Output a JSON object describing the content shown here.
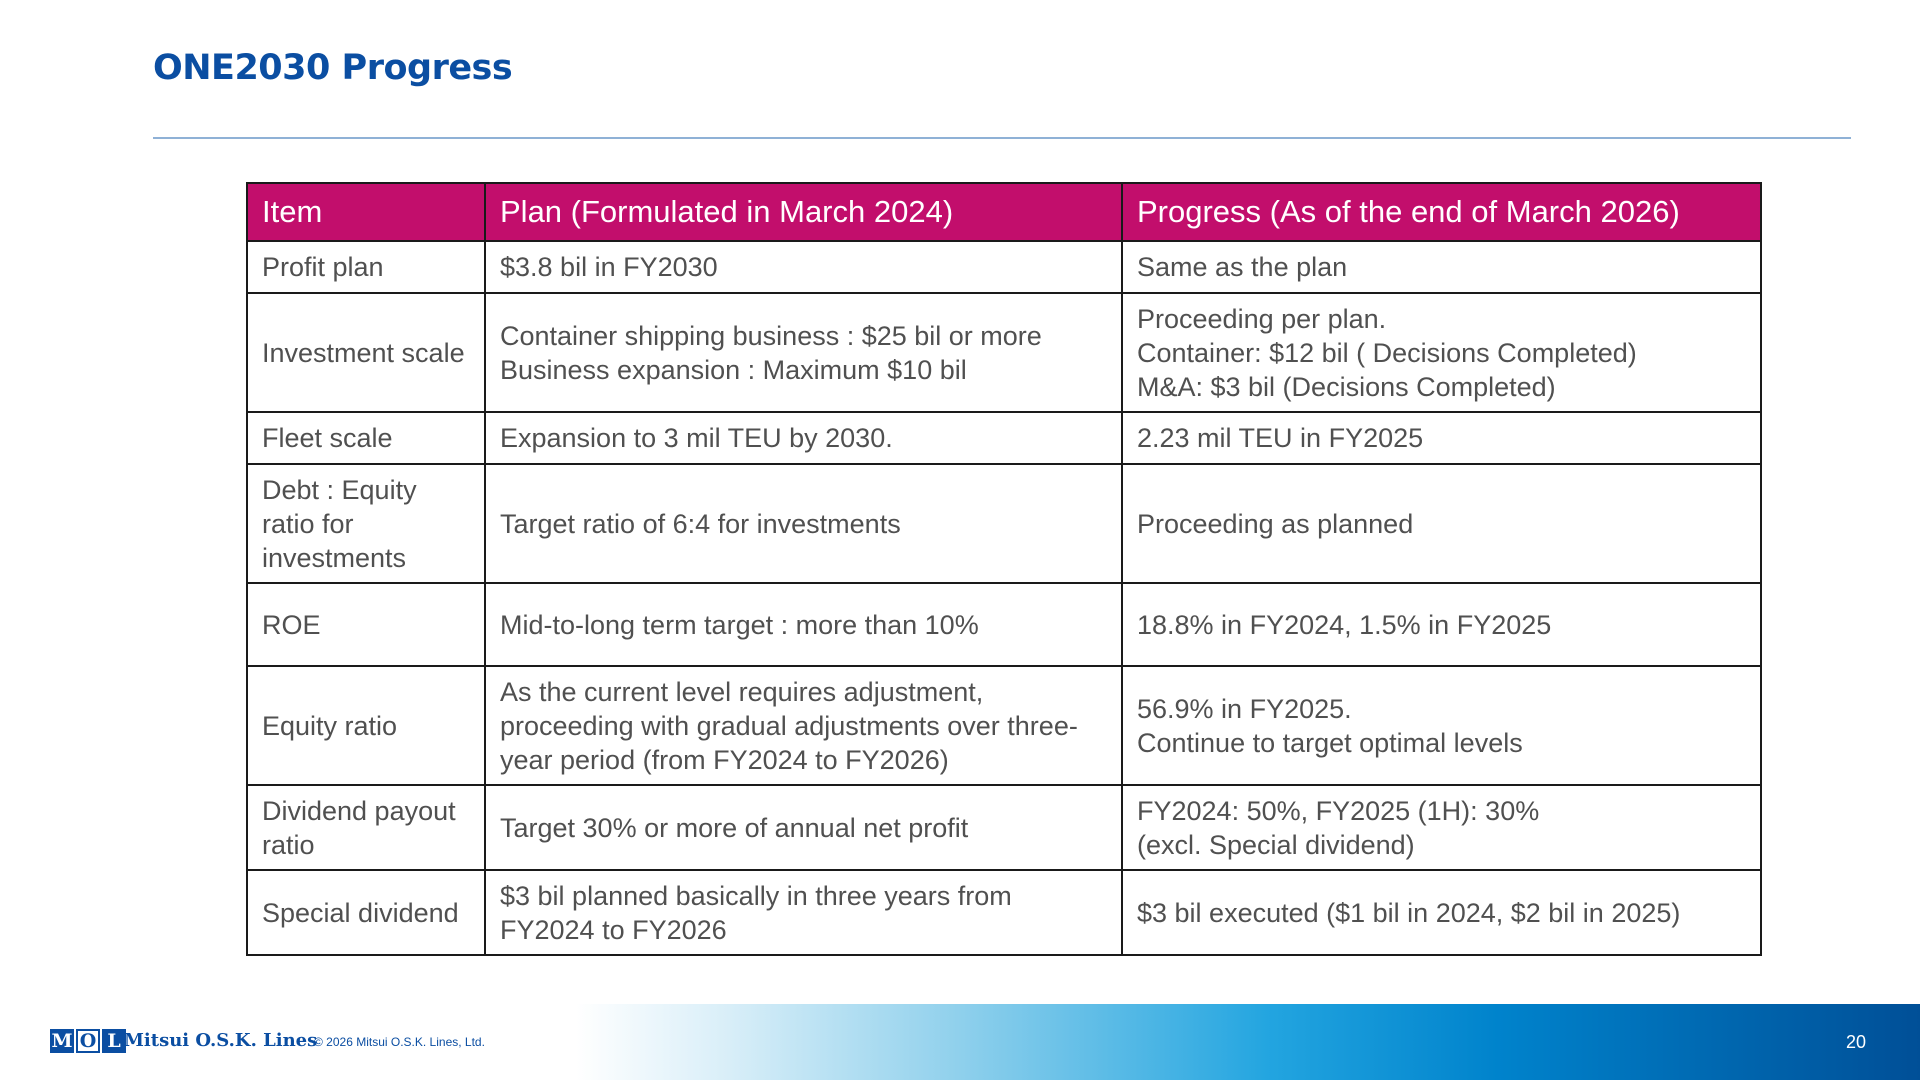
{
  "header": {
    "title": "ONE2030 Progress"
  },
  "table": {
    "columns": [
      "Item",
      "Plan (Formulated in March 2024)",
      "Progress (As of the end of March 2026)"
    ],
    "rows": [
      [
        "Profit plan",
        "$3.8 bil in FY2030",
        "Same as the plan"
      ],
      [
        "Investment scale",
        "Container shipping business : $25 bil or more\nBusiness expansion : Maximum $10 bil",
        "Proceeding per plan.\nContainer: $12 bil ( Decisions Completed)\nM&A: $3 bil (Decisions Completed)"
      ],
      [
        "Fleet scale",
        "Expansion to 3 mil TEU by 2030.",
        "2.23 mil TEU in FY2025"
      ],
      [
        "Debt : Equity\nratio for\ninvestments",
        "Target ratio of 6:4 for investments",
        "Proceeding as planned"
      ],
      [
        "ROE",
        "Mid-to-long term target : more than 10%",
        "18.8% in FY2024, 1.5% in FY2025"
      ],
      [
        "Equity ratio",
        "As the current level requires adjustment,\nproceeding with gradual adjustments over three-\nyear period (from FY2024 to FY2026)",
        "56.9% in FY2025.\nContinue to target optimal levels"
      ],
      [
        "Dividend payout\nratio",
        "Target 30% or more of annual net profit",
        "FY2024: 50%, FY2025 (1H): 30%\n (excl. Special dividend)"
      ],
      [
        "Special dividend",
        "$3 bil planned basically in three years from\nFY2024 to FY2026",
        "$3 bil executed ($1 bil in 2024, $2 bil in 2025)"
      ]
    ]
  },
  "footer": {
    "logo_letters": [
      "M",
      "O",
      "L"
    ],
    "company": "Mitsui O.S.K. Lines",
    "copyright": "© 2026 Mitsui O.S.K. Lines, Ltd.",
    "page_number": "20"
  },
  "colors": {
    "title": "#0b4ea2",
    "header_row": "#c20e6c",
    "header_text": "#ffffff",
    "body_text": "#505050"
  }
}
